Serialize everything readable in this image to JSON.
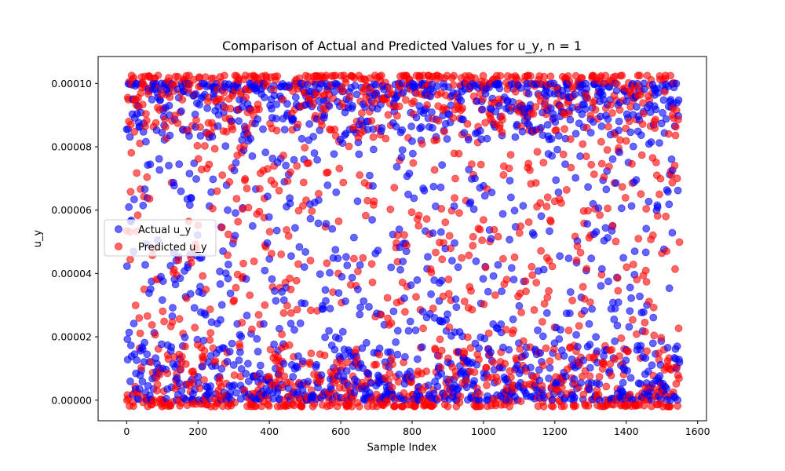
{
  "chart_data": {
    "type": "scatter",
    "title": "Comparison of Actual and Predicted Values for u_y, n = 1",
    "xlabel": "Sample Index",
    "ylabel": "u_y",
    "xlim": [
      -80,
      1625
    ],
    "ylim": [
      -6.5e-06,
      0.0001085
    ],
    "xticks": [
      0,
      200,
      400,
      600,
      800,
      1000,
      1200,
      1400,
      1600
    ],
    "xtick_labels": [
      "0",
      "200",
      "400",
      "600",
      "800",
      "1000",
      "1200",
      "1400",
      "1600"
    ],
    "yticks": [
      0,
      2e-05,
      4e-05,
      6e-05,
      8e-05,
      0.0001
    ],
    "ytick_labels": [
      "0.00000",
      "0.00002",
      "0.00004",
      "0.00006",
      "0.00008",
      "0.00010"
    ],
    "grid": false,
    "legend_position": "center-left",
    "n_samples": 1550,
    "series": [
      {
        "name": "Actual u_y",
        "color": "#0000ff",
        "opacity": 0.6,
        "y_range": [
          0,
          0.0001
        ]
      },
      {
        "name": "Predicted u_y",
        "color": "#ff0000",
        "opacity": 0.6,
        "y_range": [
          -2e-06,
          0.0001025
        ]
      }
    ]
  }
}
